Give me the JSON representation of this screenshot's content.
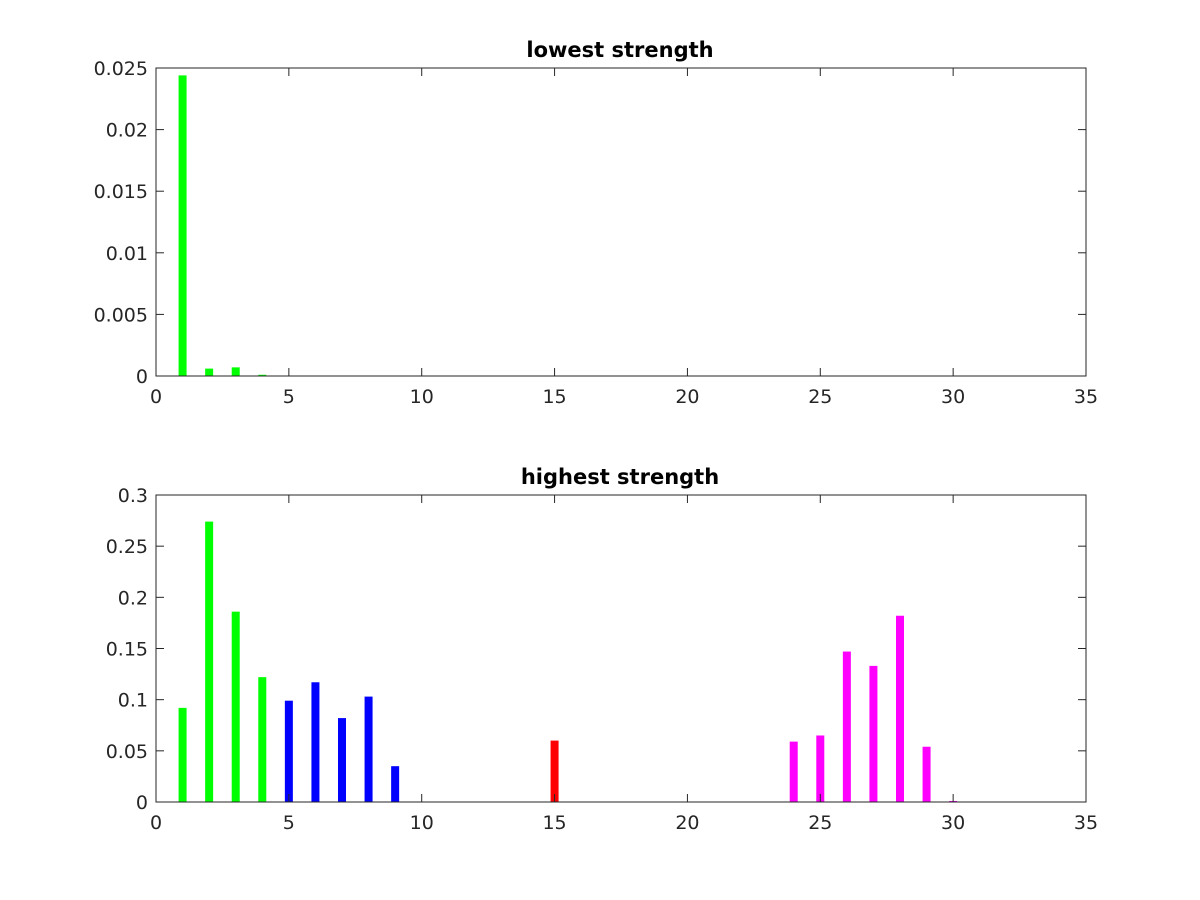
{
  "colors": {
    "green": "#00ff00",
    "blue": "#0000ff",
    "red": "#ff0000",
    "magenta": "#ff00ff",
    "axis": "#262626",
    "background": "#ffffff"
  },
  "chart_data": [
    {
      "type": "bar",
      "title": "lowest strength",
      "xlabel": "",
      "ylabel": "",
      "xlim": [
        0,
        35
      ],
      "ylim": [
        0,
        0.025
      ],
      "xticks": [
        0,
        5,
        10,
        15,
        20,
        25,
        30,
        35
      ],
      "yticks": [
        0,
        0.005,
        0.01,
        0.015,
        0.02,
        0.025
      ],
      "xtick_labels": [
        "0",
        "5",
        "10",
        "15",
        "20",
        "25",
        "30",
        "35"
      ],
      "ytick_labels": [
        "0",
        "0.005",
        "0.01",
        "0.015",
        "0.02",
        "0.025"
      ],
      "grid": false,
      "bars": [
        {
          "x": 1,
          "value": 0.0244,
          "color": "#00ff00"
        },
        {
          "x": 2,
          "value": 0.0006,
          "color": "#00ff00"
        },
        {
          "x": 3,
          "value": 0.0007,
          "color": "#00ff00"
        },
        {
          "x": 4,
          "value": 0.0001,
          "color": "#00ff00"
        }
      ]
    },
    {
      "type": "bar",
      "title": "highest strength",
      "xlabel": "",
      "ylabel": "",
      "xlim": [
        0,
        35
      ],
      "ylim": [
        0,
        0.3
      ],
      "xticks": [
        0,
        5,
        10,
        15,
        20,
        25,
        30,
        35
      ],
      "yticks": [
        0,
        0.05,
        0.1,
        0.15,
        0.2,
        0.25,
        0.3
      ],
      "xtick_labels": [
        "0",
        "5",
        "10",
        "15",
        "20",
        "25",
        "30",
        "35"
      ],
      "ytick_labels": [
        "0",
        "0.05",
        "0.1",
        "0.15",
        "0.2",
        "0.25",
        "0.3"
      ],
      "grid": false,
      "bars": [
        {
          "x": 1,
          "value": 0.092,
          "color": "#00ff00"
        },
        {
          "x": 2,
          "value": 0.274,
          "color": "#00ff00"
        },
        {
          "x": 3,
          "value": 0.186,
          "color": "#00ff00"
        },
        {
          "x": 4,
          "value": 0.122,
          "color": "#00ff00"
        },
        {
          "x": 5,
          "value": 0.099,
          "color": "#0000ff"
        },
        {
          "x": 6,
          "value": 0.117,
          "color": "#0000ff"
        },
        {
          "x": 7,
          "value": 0.082,
          "color": "#0000ff"
        },
        {
          "x": 8,
          "value": 0.103,
          "color": "#0000ff"
        },
        {
          "x": 9,
          "value": 0.035,
          "color": "#0000ff"
        },
        {
          "x": 15,
          "value": 0.06,
          "color": "#ff0000"
        },
        {
          "x": 24,
          "value": 0.059,
          "color": "#ff00ff"
        },
        {
          "x": 25,
          "value": 0.065,
          "color": "#ff00ff"
        },
        {
          "x": 26,
          "value": 0.147,
          "color": "#ff00ff"
        },
        {
          "x": 27,
          "value": 0.133,
          "color": "#ff00ff"
        },
        {
          "x": 28,
          "value": 0.182,
          "color": "#ff00ff"
        },
        {
          "x": 29,
          "value": 0.054,
          "color": "#ff00ff"
        },
        {
          "x": 30,
          "value": 0.001,
          "color": "#ff00ff"
        }
      ]
    }
  ]
}
